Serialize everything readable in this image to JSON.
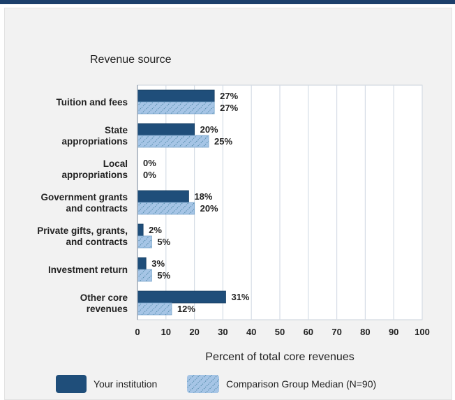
{
  "colors": {
    "institution": "#1f4e7a",
    "comparison_fill": "#a6c5e6",
    "comparison_hatch": "#3e7d9c",
    "grid": "#d6dde6"
  },
  "chart_data": {
    "type": "bar",
    "orientation": "horizontal",
    "title": "Revenue source",
    "xlabel": "Percent of total core revenues",
    "xlim": [
      0,
      100
    ],
    "xticks": [
      "0",
      "10",
      "20",
      "30",
      "40",
      "50",
      "60",
      "70",
      "80",
      "90",
      "100"
    ],
    "grid": true,
    "legend_position": "bottom",
    "categories": [
      [
        "Tuition and fees"
      ],
      [
        "State",
        "appropriations"
      ],
      [
        "Local",
        "appropriations"
      ],
      [
        "Government grants",
        "and contracts"
      ],
      [
        "Private gifts, grants,",
        "and contracts"
      ],
      [
        "Investment return"
      ],
      [
        "Other core",
        "revenues"
      ]
    ],
    "series": [
      {
        "name": "Your institution",
        "values": [
          27,
          20,
          0,
          18,
          2,
          3,
          31
        ],
        "labels": [
          "27%",
          "20%",
          "0%",
          "18%",
          "2%",
          "3%",
          "31%"
        ]
      },
      {
        "name": "Comparison Group Median (N=90)",
        "values": [
          27,
          25,
          0,
          20,
          5,
          5,
          12
        ],
        "labels": [
          "27%",
          "25%",
          "0%",
          "20%",
          "5%",
          "5%",
          "12%"
        ]
      }
    ]
  }
}
